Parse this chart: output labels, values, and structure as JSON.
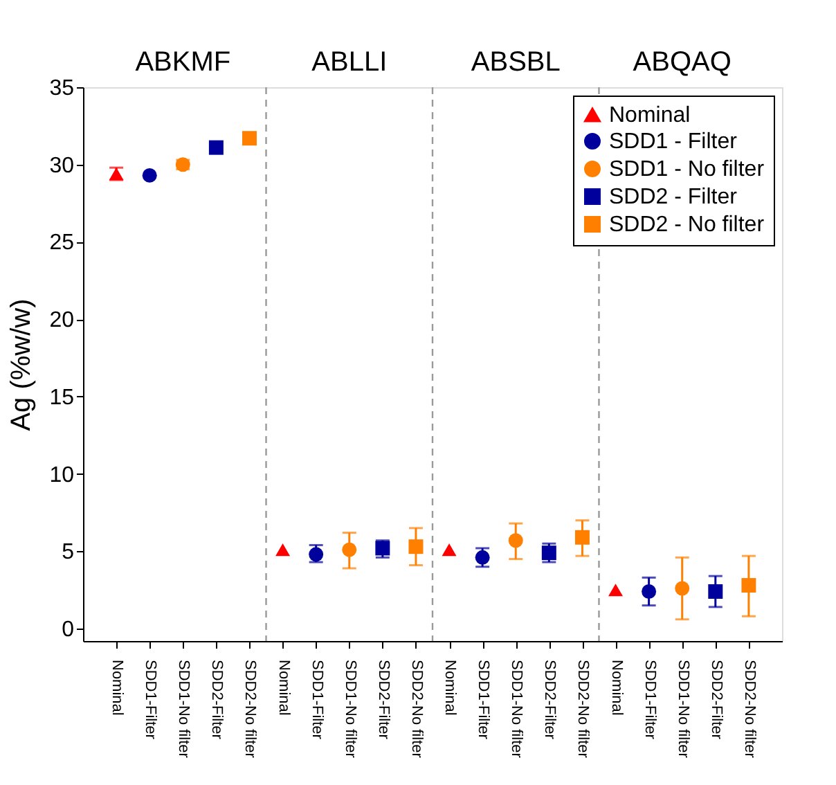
{
  "chart_data": {
    "type": "scatter",
    "ylabel": "Ag (%w/w)",
    "ylim": [
      -0.8,
      35
    ],
    "yticks": [
      0,
      5,
      10,
      15,
      20,
      25,
      30,
      35
    ],
    "categories": [
      "Nominal",
      "SDD1-Filter",
      "SDD1-No filter",
      "SDD2-Filter",
      "SDD2-No filter",
      "Nominal",
      "SDD1-Filter",
      "SDD1-No filter",
      "SDD2-Filter",
      "SDD2-No filter",
      "Nominal",
      "SDD1-Filter",
      "SDD1-No filter",
      "SDD2-Filter",
      "SDD2-No filter",
      "Nominal",
      "SDD1-Filter",
      "SDD1-No filter",
      "SDD2-Filter",
      "SDD2-No filter"
    ],
    "annotations": [
      "ABKMF",
      "ABLLI",
      "ABSBL",
      "ABQAQ"
    ],
    "legend": "top right",
    "grid": false,
    "series": [
      {
        "name": "Nominal",
        "color": "#ff0000",
        "marker": "triangle",
        "values": [
          29.4,
          null,
          null,
          null,
          null,
          5.1,
          null,
          null,
          null,
          null,
          5.1,
          null,
          null,
          null,
          null,
          2.5,
          null,
          null,
          null,
          null
        ],
        "errors": [
          0.4,
          null,
          null,
          null,
          null,
          null,
          null,
          null,
          null,
          null,
          null,
          null,
          null,
          null,
          null,
          null,
          null,
          null,
          null,
          null
        ]
      },
      {
        "name": "SDD1 - Filter",
        "color": "#00009c",
        "marker": "circle",
        "values": [
          null,
          29.3,
          null,
          null,
          null,
          null,
          4.8,
          null,
          null,
          null,
          null,
          4.6,
          null,
          null,
          null,
          null,
          2.4,
          null,
          null,
          null
        ],
        "errors": [
          null,
          null,
          null,
          null,
          null,
          null,
          [
            4.3,
            5.4
          ],
          null,
          null,
          null,
          null,
          [
            4.0,
            5.2
          ],
          null,
          null,
          null,
          null,
          [
            1.5,
            3.3
          ],
          null,
          null,
          null
        ]
      },
      {
        "name": "SDD1 - No filter",
        "color": "#ff8000",
        "marker": "circle",
        "values": [
          null,
          null,
          30.0,
          null,
          null,
          null,
          null,
          5.1,
          null,
          null,
          null,
          null,
          5.7,
          null,
          null,
          null,
          null,
          2.6,
          null,
          null
        ],
        "errors": [
          null,
          null,
          0.3,
          null,
          null,
          null,
          null,
          [
            3.9,
            6.2
          ],
          null,
          null,
          null,
          null,
          [
            4.5,
            6.8
          ],
          null,
          null,
          null,
          null,
          [
            0.6,
            4.6
          ],
          null,
          null
        ]
      },
      {
        "name": "SDD2 - Filter",
        "color": "#00009c",
        "marker": "square",
        "values": [
          null,
          null,
          null,
          31.1,
          null,
          null,
          null,
          null,
          5.2,
          null,
          null,
          null,
          null,
          4.9,
          null,
          null,
          null,
          null,
          2.4,
          null
        ],
        "errors": [
          null,
          null,
          null,
          null,
          null,
          null,
          null,
          null,
          [
            4.6,
            5.7
          ],
          null,
          null,
          null,
          null,
          [
            4.3,
            5.5
          ],
          null,
          null,
          null,
          null,
          [
            1.4,
            3.4
          ],
          null
        ]
      },
      {
        "name": "SDD2 - No filter",
        "color": "#ff8000",
        "marker": "square",
        "values": [
          null,
          null,
          null,
          null,
          31.7,
          null,
          null,
          null,
          null,
          5.3,
          null,
          null,
          null,
          null,
          5.9,
          null,
          null,
          null,
          null,
          2.8
        ],
        "errors": [
          null,
          null,
          null,
          null,
          null,
          null,
          null,
          null,
          null,
          [
            4.1,
            6.5
          ],
          null,
          null,
          null,
          null,
          [
            4.7,
            7.0
          ],
          null,
          null,
          null,
          null,
          [
            0.8,
            4.7
          ]
        ]
      }
    ]
  }
}
